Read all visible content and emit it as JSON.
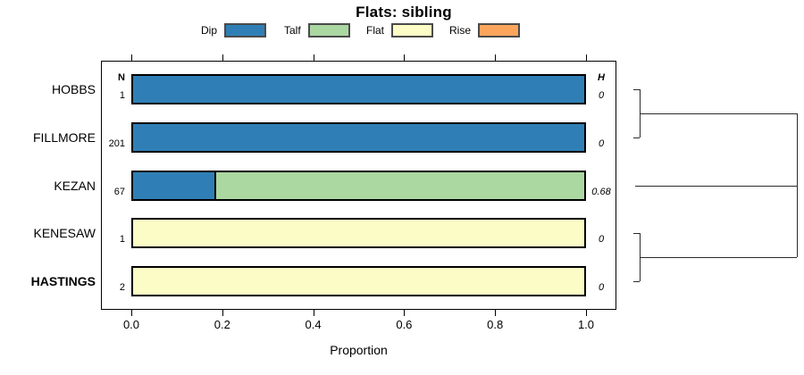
{
  "chart_data": {
    "type": "bar",
    "subtype": "horizontal-stacked-proportions-with-dendrogram",
    "title": "Flats: sibling",
    "xlabel": "Proportion",
    "xlim": [
      0,
      1
    ],
    "xticks": [
      "0.0",
      "0.2",
      "0.4",
      "0.6",
      "0.8",
      "1.0"
    ],
    "grid": false,
    "legend_position": "top",
    "legend": [
      {
        "label": "Dip",
        "color": "#2f7fb6"
      },
      {
        "label": "Talf",
        "color": "#abd7a1"
      },
      {
        "label": "Flat",
        "color": "#fcfcc6"
      },
      {
        "label": "Rise",
        "color": "#fba55c"
      }
    ],
    "columns": {
      "n_header": "N",
      "h_header": "H"
    },
    "rows": [
      {
        "label": "HOBBS",
        "bold": false,
        "n": "1",
        "h": "0",
        "segments": [
          {
            "category": "Dip",
            "value": 1.0
          }
        ]
      },
      {
        "label": "FILLMORE",
        "bold": false,
        "n": "201",
        "h": "0",
        "segments": [
          {
            "category": "Dip",
            "value": 1.0
          }
        ]
      },
      {
        "label": "KEZAN",
        "bold": false,
        "n": "67",
        "h": "0.68",
        "segments": [
          {
            "category": "Dip",
            "value": 0.18
          },
          {
            "category": "Talf",
            "value": 0.82
          }
        ]
      },
      {
        "label": "KENESAW",
        "bold": false,
        "n": "1",
        "h": "0",
        "segments": [
          {
            "category": "Flat",
            "value": 1.0
          }
        ]
      },
      {
        "label": "HASTINGS",
        "bold": true,
        "n": "2",
        "h": "0",
        "segments": [
          {
            "category": "Flat",
            "value": 1.0
          }
        ]
      }
    ],
    "dendrogram": {
      "leaf_pairs": [
        [
          0,
          1
        ],
        [
          3,
          4
        ]
      ],
      "singleton_rows": [
        2
      ],
      "root_joins": "all"
    }
  }
}
